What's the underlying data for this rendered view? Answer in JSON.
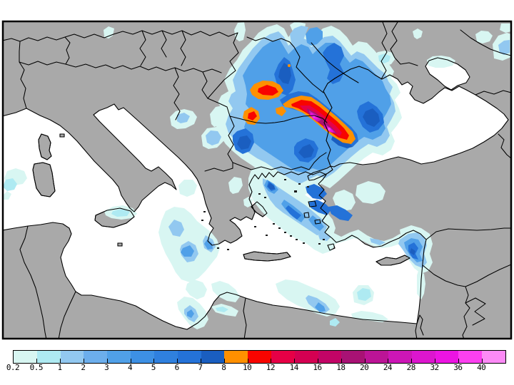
{
  "legend": {
    "labels": [
      "0.2",
      "0.5",
      "1",
      "2",
      "3",
      "4",
      "5",
      "6",
      "7",
      "8",
      "10",
      "12",
      "14",
      "16",
      "18",
      "20",
      "24",
      "28",
      "32",
      "36",
      "40"
    ],
    "colors": [
      "#d8f6f2",
      "#aeeaf2",
      "#92c8f0",
      "#6caeec",
      "#50a0e8",
      "#3d90e4",
      "#2f80de",
      "#2472d8",
      "#1a5ec0",
      "#ff9000",
      "#f80400",
      "#e60046",
      "#d40052",
      "#c20466",
      "#a81274",
      "#bc1496",
      "#cc16b6",
      "#dc16ce",
      "#ec14e2",
      "#fc40f0",
      "#fc8af6"
    ]
  },
  "map": {
    "land_color": "#a9a9a9",
    "sea_color": "#ffffff",
    "line_color": "#000000",
    "frame_color": "#000000"
  }
}
